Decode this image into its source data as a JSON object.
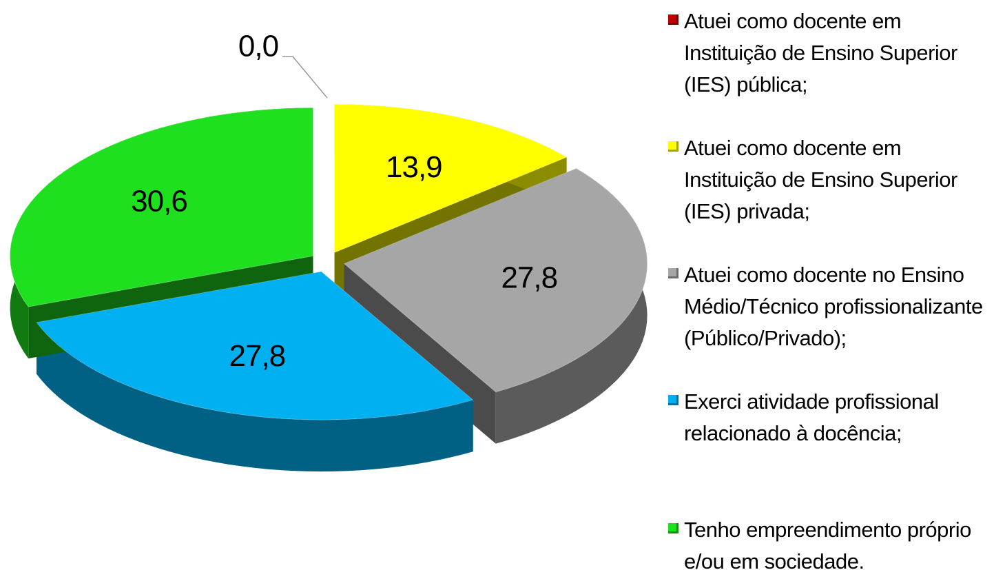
{
  "chart_data": {
    "type": "pie3d",
    "categories": [
      "Atuei como docente em Instituição de Ensino Superior (IES) pública;",
      "Atuei como docente em Instituição de Ensino Superior (IES) privada;",
      "Atuei como docente no Ensino Médio/Técnico profissionalizante (Público/Privado);",
      "Exerci atividade profissional relacionado à docência;",
      "Tenho empreendimento próprio e/ou em sociedade."
    ],
    "values": [
      0,
      13.9,
      27.8,
      27.8,
      30.6
    ],
    "value_labels": [
      "0,0",
      "13,9",
      "27,8",
      "27,8",
      "30,6"
    ],
    "colors": [
      "#c00000",
      "#ffff00",
      "#a6a6a6",
      "#00b0f0",
      "#1ee01e"
    ],
    "legend": "right"
  }
}
